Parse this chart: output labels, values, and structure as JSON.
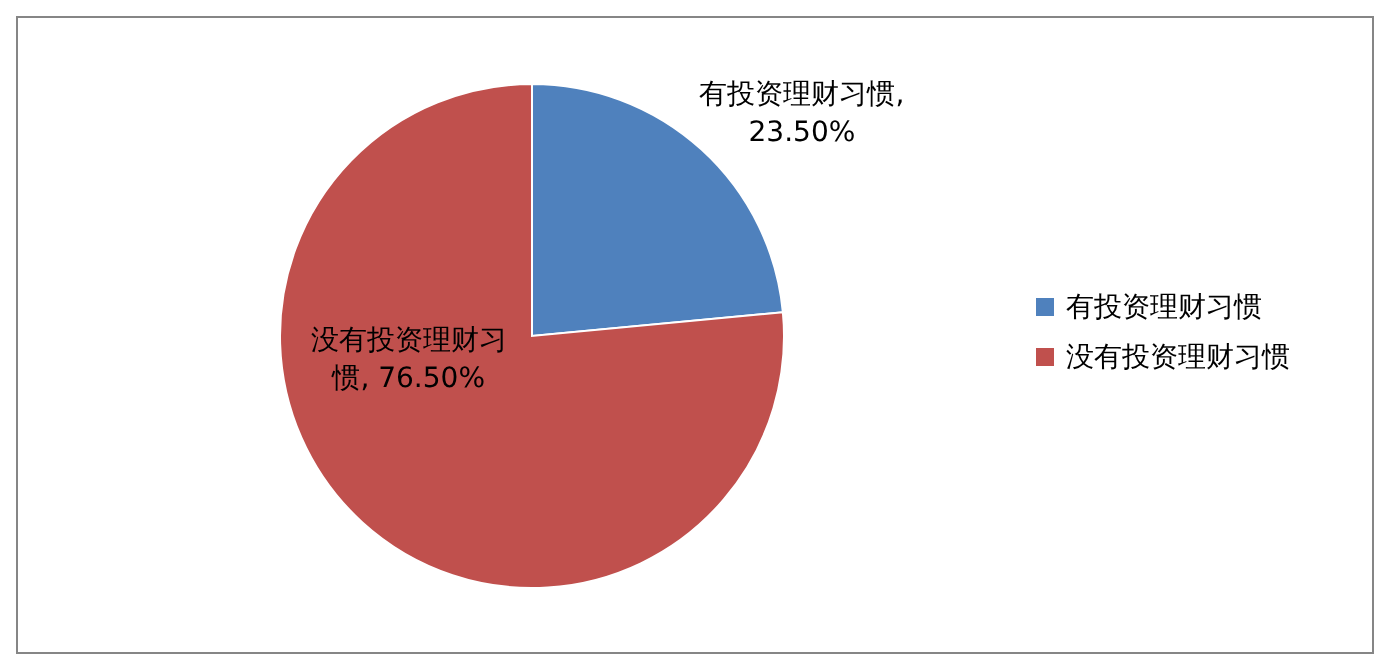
{
  "chart_data": {
    "type": "pie",
    "categories": [
      "有投资理财习惯",
      "没有投资理财习惯"
    ],
    "values": [
      23.5,
      76.5
    ],
    "colors": [
      "#4f81bd",
      "#c0504d"
    ],
    "value_labels": [
      "有投资理财习惯, 23.50%",
      "没有投资理财习惯, 76.50%"
    ],
    "legend": "right"
  }
}
